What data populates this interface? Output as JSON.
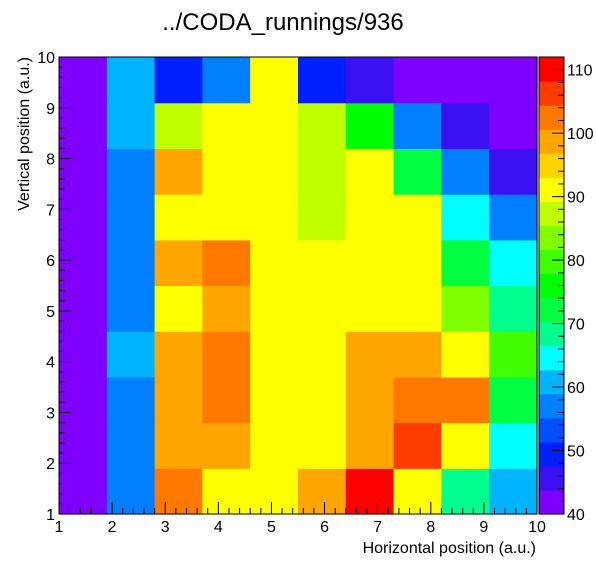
{
  "chart_data": {
    "type": "heatmap",
    "title": "../CODA_runnings/936",
    "xlabel": "Horizontal position (a.u.)",
    "ylabel": "Vertical position (a.u.)",
    "xlim": [
      1,
      10
    ],
    "ylim": [
      1,
      10
    ],
    "x_ticks": [
      "1",
      "2",
      "3",
      "4",
      "5",
      "6",
      "7",
      "8",
      "9",
      "10"
    ],
    "y_ticks": [
      "1",
      "2",
      "3",
      "4",
      "5",
      "6",
      "7",
      "8",
      "9",
      "10"
    ],
    "color_scale": {
      "zlim": [
        40,
        112
      ],
      "tick_values": [
        40,
        50,
        60,
        70,
        80,
        90,
        100,
        110
      ],
      "tick_labels": [
        "40",
        "50",
        "60",
        "70",
        "80",
        "90",
        "100",
        "110"
      ],
      "palette": [
        "#8000ff",
        "#3b10f2",
        "#0020ff",
        "#0050ff",
        "#0080ff",
        "#00b4ff",
        "#00ffff",
        "#00ff8c",
        "#00ff40",
        "#00ff00",
        "#40ff00",
        "#80ff00",
        "#bfff00",
        "#ffff00",
        "#ffd200",
        "#ffa500",
        "#ff7800",
        "#ff3c00",
        "#ff0000"
      ]
    },
    "rows_bottom_to_top": [
      [
        42,
        58,
        101,
        93,
        91,
        98,
        111,
        93,
        70,
        62
      ],
      [
        42,
        58,
        99,
        99,
        91,
        93,
        99,
        107,
        90,
        65
      ],
      [
        42,
        58,
        99,
        103,
        91,
        93,
        99,
        103,
        103,
        72
      ],
      [
        42,
        60,
        99,
        103,
        91,
        93,
        99,
        99,
        93,
        78
      ],
      [
        42,
        58,
        93,
        99,
        91,
        91,
        93,
        93,
        84,
        69
      ],
      [
        42,
        58,
        99,
        102,
        91,
        91,
        93,
        91,
        72,
        66
      ],
      [
        42,
        58,
        93,
        93,
        91,
        88,
        91,
        91,
        65,
        58
      ],
      [
        42,
        58,
        99,
        93,
        91,
        88,
        91,
        73,
        58,
        47
      ],
      [
        42,
        60,
        86,
        93,
        91,
        86,
        76,
        56,
        47,
        43
      ],
      [
        42,
        60,
        49,
        56,
        91,
        51,
        47,
        43,
        43,
        43
      ]
    ]
  }
}
